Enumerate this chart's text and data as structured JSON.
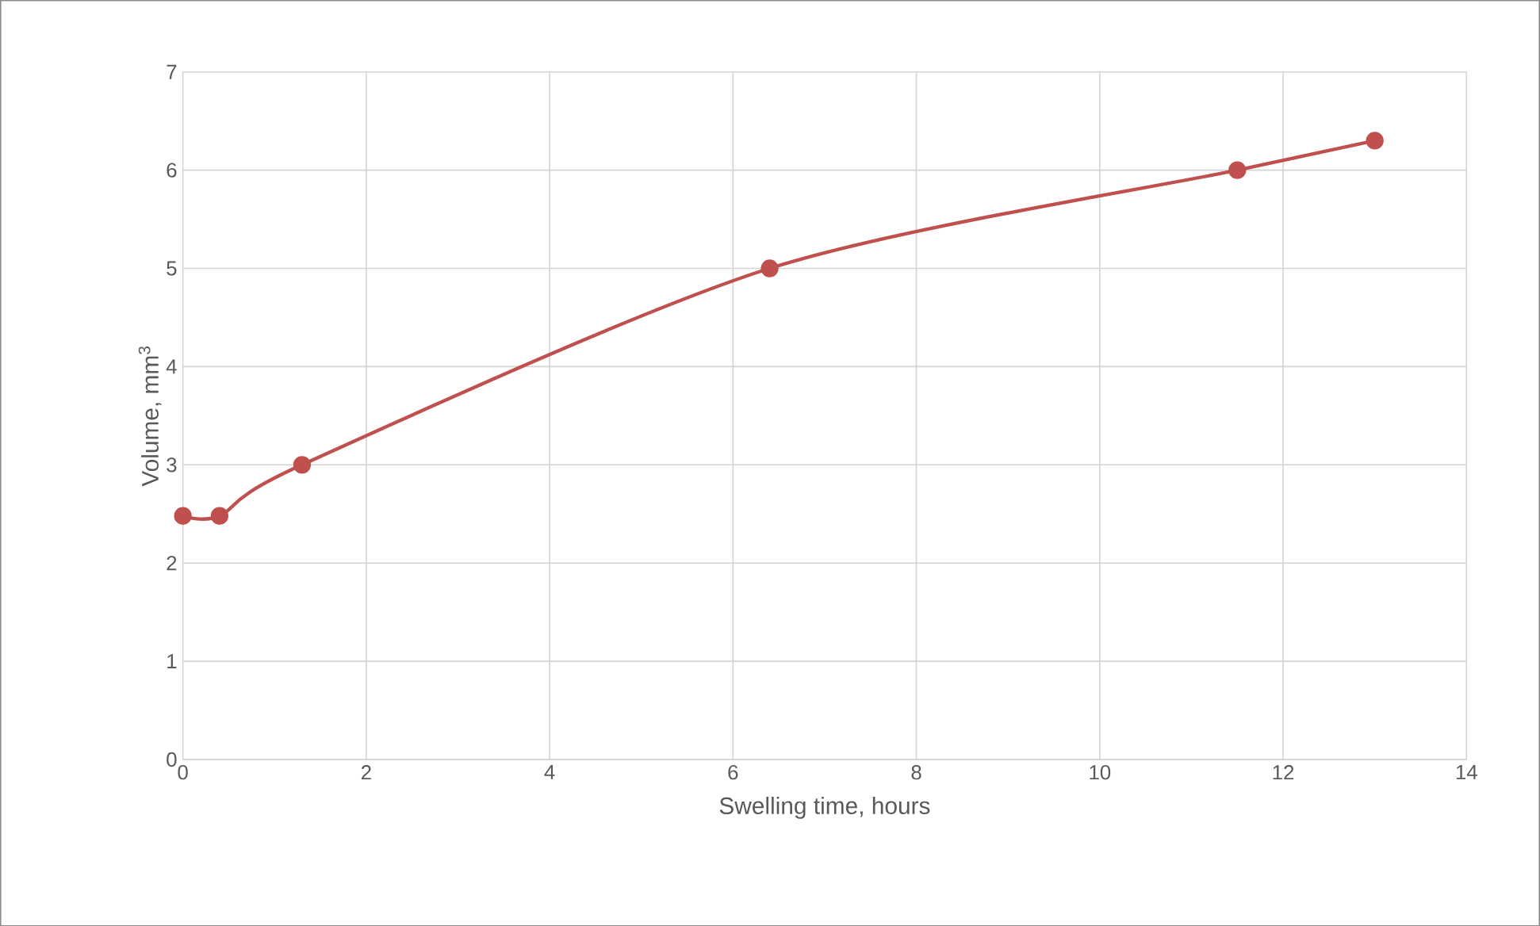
{
  "chart_data": {
    "type": "line",
    "xlabel": "Swelling time, hours",
    "ylabel": "Volume, mm$^{3}$",
    "x": [
      0,
      0.4,
      1.3,
      6.4,
      11.5,
      13.0
    ],
    "series": [
      {
        "color": "#c0504d",
        "values": [
          2.48,
          2.48,
          3.0,
          5.0,
          6.0,
          6.3
        ]
      }
    ],
    "xlim": [
      0,
      14
    ],
    "xticks": [
      0,
      2,
      4,
      6,
      8,
      10,
      12,
      14
    ],
    "ylim": [
      0,
      7
    ],
    "yticks": [
      0,
      1,
      2,
      3,
      4,
      5,
      6,
      7
    ],
    "grid": true,
    "marker": "circle",
    "line_style": "solid"
  }
}
